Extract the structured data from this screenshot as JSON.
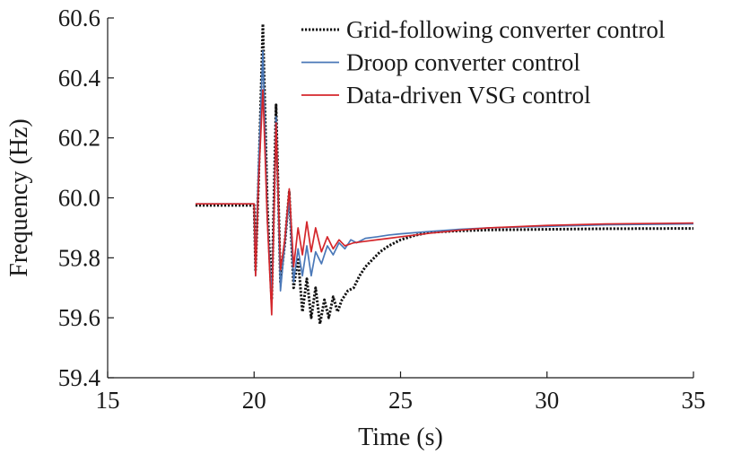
{
  "chart_data": {
    "type": "line",
    "title": "",
    "xlabel": "Time (s)",
    "ylabel": "Frequency (Hz)",
    "xlim": [
      15,
      35
    ],
    "ylim": [
      59.4,
      60.6
    ],
    "xticks": [
      15,
      20,
      25,
      30,
      35
    ],
    "xtick_labels": [
      "15",
      "20",
      "25",
      "30",
      "35"
    ],
    "yticks": [
      59.4,
      59.6,
      59.8,
      60.0,
      60.2,
      60.4,
      60.6
    ],
    "ytick_labels": [
      "59.4",
      "59.6",
      "59.8",
      "60.0",
      "60.2",
      "60.4",
      "60.6"
    ],
    "grid": false,
    "legend_position": "top-right",
    "series": [
      {
        "name": "Grid-following converter control",
        "color": "#111111",
        "style": "dotted",
        "x": [
          18,
          20.0,
          20.05,
          20.15,
          20.3,
          20.45,
          20.6,
          20.75,
          20.9,
          21.05,
          21.2,
          21.35,
          21.5,
          21.65,
          21.8,
          21.95,
          22.1,
          22.25,
          22.4,
          22.55,
          22.7,
          22.85,
          23.0,
          23.2,
          23.4,
          23.6,
          23.8,
          24.0,
          24.3,
          24.6,
          25.0,
          25.5,
          26.0,
          27.0,
          28.0,
          30.0,
          32.0,
          35.0
        ],
        "y": [
          59.975,
          59.975,
          59.76,
          60.05,
          60.58,
          59.98,
          59.66,
          60.31,
          59.72,
          59.85,
          60.02,
          59.7,
          59.8,
          59.62,
          59.73,
          59.6,
          59.7,
          59.58,
          59.66,
          59.6,
          59.67,
          59.62,
          59.66,
          59.69,
          59.7,
          59.74,
          59.77,
          59.79,
          59.82,
          59.84,
          59.86,
          59.875,
          59.885,
          59.89,
          59.893,
          59.895,
          59.897,
          59.898
        ]
      },
      {
        "name": "Droop converter control",
        "color": "#4a78b8",
        "style": "solid",
        "x": [
          18,
          20.0,
          20.05,
          20.15,
          20.3,
          20.45,
          20.6,
          20.75,
          20.9,
          21.05,
          21.2,
          21.35,
          21.5,
          21.65,
          21.8,
          21.95,
          22.1,
          22.3,
          22.5,
          22.7,
          22.9,
          23.1,
          23.3,
          23.5,
          23.8,
          24.2,
          24.6,
          25.0,
          26.0,
          27.0,
          28.0,
          30.0,
          32.0,
          35.0
        ],
        "y": [
          59.98,
          59.98,
          59.74,
          60.1,
          60.49,
          59.93,
          59.66,
          60.27,
          59.69,
          59.85,
          60.0,
          59.72,
          59.83,
          59.74,
          59.84,
          59.74,
          59.82,
          59.78,
          59.84,
          59.81,
          59.85,
          59.83,
          59.86,
          59.85,
          59.865,
          59.87,
          59.876,
          59.88,
          59.888,
          59.895,
          59.9,
          59.905,
          59.91,
          59.913
        ]
      },
      {
        "name": "Data-driven VSG control",
        "color": "#d4262b",
        "style": "solid",
        "x": [
          18,
          20.0,
          20.05,
          20.15,
          20.3,
          20.45,
          20.6,
          20.75,
          20.9,
          21.05,
          21.2,
          21.35,
          21.5,
          21.65,
          21.8,
          21.95,
          22.1,
          22.3,
          22.5,
          22.7,
          22.9,
          23.1,
          23.4,
          23.8,
          24.2,
          24.6,
          25.0,
          26.0,
          27.0,
          28.0,
          30.0,
          32.0,
          35.0
        ],
        "y": [
          59.98,
          59.98,
          59.74,
          60.05,
          60.36,
          59.93,
          59.61,
          60.25,
          59.76,
          59.86,
          60.03,
          59.77,
          59.9,
          59.81,
          59.92,
          59.82,
          59.9,
          59.82,
          59.87,
          59.83,
          59.86,
          59.84,
          59.85,
          59.855,
          59.86,
          59.865,
          59.87,
          59.882,
          59.892,
          59.9,
          59.908,
          59.913,
          59.916
        ]
      }
    ]
  }
}
